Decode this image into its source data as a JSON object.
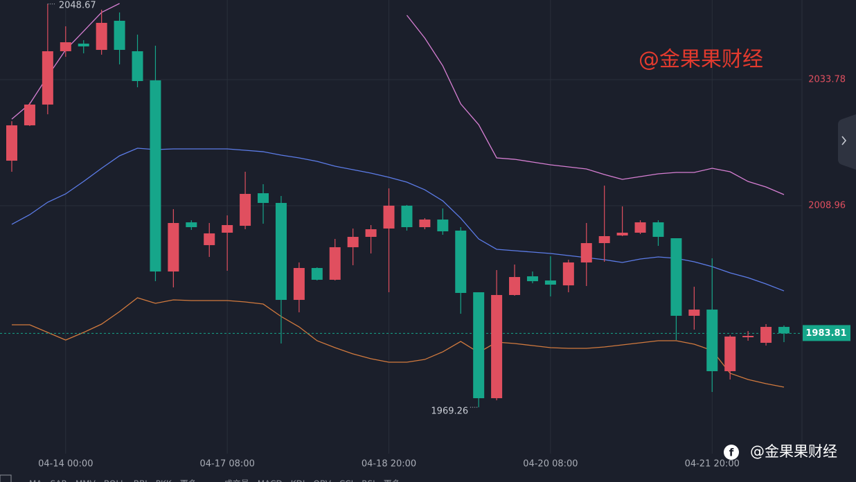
{
  "chart_data": {
    "type": "candlestick",
    "categories": [
      null,
      null,
      null,
      "04-14 00:00",
      null,
      null,
      null,
      null,
      null,
      null,
      null,
      null,
      "04-17 08:00",
      null,
      null,
      null,
      null,
      null,
      null,
      null,
      null,
      "04-18 20:00",
      null,
      null,
      null,
      null,
      null,
      null,
      null,
      null,
      "04-20 08:00",
      null,
      null,
      null,
      null,
      null,
      null,
      null,
      null,
      "04-21 20:00",
      null,
      null,
      null,
      null
    ],
    "open": [
      2017.82,
      2024.78,
      2028.87,
      2039.37,
      2040.87,
      2039.64,
      2045.37,
      2039.37,
      2033.64,
      1996.0,
      2005.68,
      2001.19,
      2003.64,
      2005.0,
      2011.41,
      2009.5,
      1990.41,
      1996.69,
      1994.37,
      2000.78,
      2002.82,
      2004.46,
      2008.96,
      2004.73,
      2006.23,
      2004.05,
      1991.91,
      1971.05,
      1991.37,
      1995.05,
      1994.23,
      1993.27,
      1997.78,
      2001.59,
      2003.09,
      2003.64,
      2005.68,
      2002.55,
      1987.28,
      1988.5,
      1976.37,
      1983.05,
      1981.96,
      1985.09
    ],
    "high": [
      2025.59,
      2029.28,
      2048.67,
      2044.28,
      2041.55,
      2047.55,
      2047.01,
      2042.64,
      2040.46,
      2008.28,
      2006.09,
      2005.55,
      2007.05,
      2015.64,
      2013.19,
      2010.87,
      1997.78,
      1996.82,
      2002.41,
      2004.46,
      2005.14,
      2012.37,
      2009.1,
      2006.5,
      2008.41,
      2004.73,
      1991.91,
      1996.28,
      1997.37,
      1996.0,
      1999.0,
      1998.32,
      2005.55,
      2012.91,
      2008.82,
      2006.09,
      2006.09,
      2002.55,
      1993.0,
      1998.59,
      1983.46,
      1984.28,
      1985.64,
      1985.37
    ],
    "low": [
      2015.64,
      2024.64,
      2026.96,
      2038.28,
      2038.96,
      2038.69,
      2036.78,
      2032.28,
      1994.09,
      1992.87,
      2004.19,
      1998.87,
      1996.14,
      2004.32,
      2005.41,
      1981.82,
      1987.96,
      1994.23,
      1994.23,
      1997.23,
      1999.55,
      1991.91,
      2004.05,
      2004.32,
      2003.23,
      1987.68,
      1969.26,
      1970.64,
      1991.23,
      1993.68,
      1991.09,
      1991.91,
      1993.14,
      1997.91,
      2002.96,
      2003.37,
      2001.05,
      1982.5,
      1984.55,
      1972.28,
      1974.73,
      1982.37,
      1981.41,
      1982.09
    ],
    "close": [
      2024.78,
      2028.87,
      2039.37,
      2041.14,
      2040.32,
      2044.96,
      2039.64,
      2033.5,
      1996.0,
      2005.55,
      2004.73,
      2003.5,
      2005.14,
      2011.28,
      2009.5,
      1990.41,
      1996.69,
      1994.37,
      2000.78,
      2002.82,
      2004.32,
      2008.96,
      2004.73,
      2006.23,
      2003.91,
      1991.78,
      1971.05,
      1991.37,
      1994.91,
      1994.09,
      1993.41,
      1997.78,
      2001.59,
      2002.96,
      2003.64,
      2005.68,
      2002.82,
      1987.28,
      1988.5,
      1976.37,
      1983.19,
      1983.32,
      1985.09,
      1983.81
    ],
    "up_color": "#e04f5f",
    "down_color": "#16a68a",
    "ylim": [
      1960.14,
      2049.46
    ],
    "yticks": [
      2033.78,
      2008.96
    ],
    "grid": true,
    "series": [
      {
        "color": "#d77fd3",
        "values": [
          2026.0,
          2029.0,
          2034.46,
          2039.64,
          2043.32,
          2047.01,
          2048.78,
          null,
          null,
          null,
          null,
          null,
          null,
          null,
          null,
          null,
          null,
          null,
          null,
          null,
          null,
          null,
          2046.46,
          2041.96,
          2036.5,
          2029.0,
          2024.91,
          2018.37,
          2018.09,
          2017.55,
          2017.0,
          2016.59,
          2016.19,
          2015.09,
          2014.14,
          2014.69,
          2015.23,
          2015.5,
          2015.5,
          2016.32,
          2015.64,
          2013.73,
          2012.64,
          2011.14
        ]
      },
      {
        "color": "#5c7ce8",
        "values": [
          2005.28,
          2007.19,
          2009.64,
          2011.28,
          2013.73,
          2016.32,
          2018.78,
          2020.28,
          2020.0,
          2020.14,
          2020.14,
          2020.14,
          2020.14,
          2019.87,
          2019.59,
          2018.91,
          2018.37,
          2017.69,
          2016.73,
          2016.05,
          2015.37,
          2014.55,
          2013.59,
          2012.09,
          2009.91,
          2006.5,
          2002.41,
          2000.37,
          2000.09,
          1999.82,
          1999.55,
          1999.14,
          1998.73,
          1998.32,
          1997.78,
          1998.46,
          1998.87,
          1998.59,
          1997.91,
          1996.96,
          1995.73,
          1994.78,
          1993.55,
          1992.18
        ]
      },
      {
        "color": "#d27a3e",
        "values": [
          1985.5,
          1985.5,
          1984.0,
          1982.5,
          1984.0,
          1985.64,
          1988.09,
          1990.82,
          1989.73,
          1990.41,
          1990.28,
          1990.28,
          1990.28,
          1990.0,
          1989.59,
          1987.14,
          1985.09,
          1982.37,
          1981.0,
          1979.77,
          1978.82,
          1978.14,
          1978.14,
          1978.68,
          1980.18,
          1982.23,
          1980.05,
          1982.09,
          1981.82,
          1981.41,
          1981.0,
          1980.87,
          1980.87,
          1981.14,
          1981.55,
          1981.96,
          1982.37,
          1982.37,
          1981.68,
          1980.46,
          1975.96,
          1974.73,
          1973.91,
          1973.23
        ]
      }
    ]
  },
  "watermark": "@金果果财经",
  "footer_watermark": "@金果果财经",
  "indicator_tabs": [
    "MA",
    "SAR",
    "MMV",
    "BOLL",
    "BBI",
    "PKK",
    "更多",
    "成交量",
    "MACD",
    "KDJ",
    "OBV",
    "CCI",
    "RSI",
    "更多"
  ]
}
